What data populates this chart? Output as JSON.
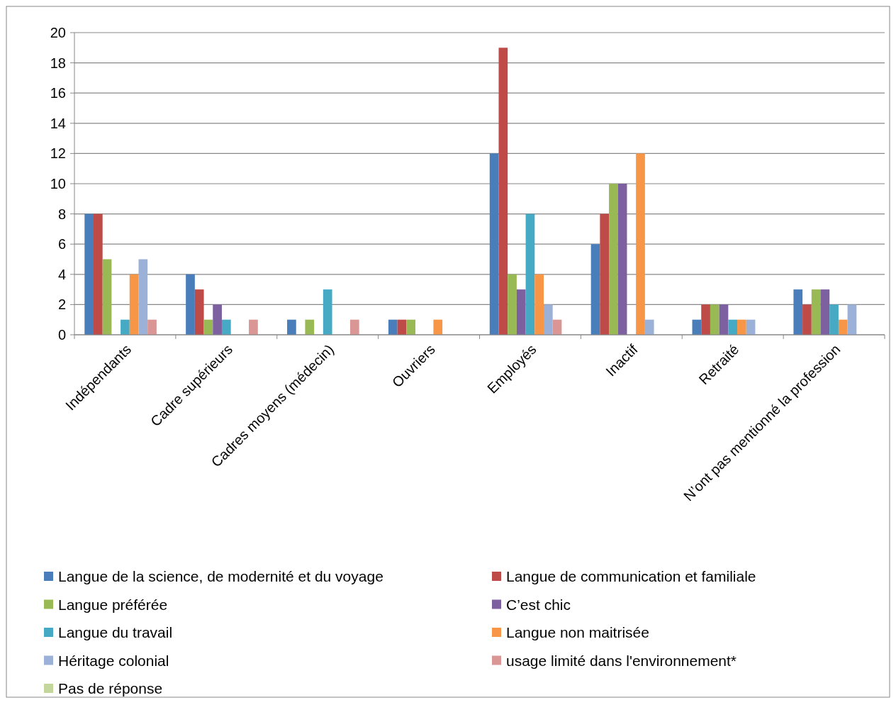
{
  "chart_data": {
    "type": "bar",
    "categories": [
      "Indépendants",
      "Cadre supérieurs",
      "Cadres moyens (médecin)",
      "Ouvriers",
      "Employés",
      "Inactif",
      "Retraité",
      "N’ont pas mentionné la profession"
    ],
    "series": [
      {
        "name": "Langue de la science, de modernité et du voyage",
        "color": "#4a7ebb",
        "values": [
          8,
          4,
          1,
          1,
          12,
          6,
          1,
          3
        ]
      },
      {
        "name": "Langue de communication et familiale",
        "color": "#be4b48",
        "values": [
          8,
          3,
          0,
          1,
          19,
          8,
          2,
          2
        ]
      },
      {
        "name": "Langue préférée",
        "color": "#98b954",
        "values": [
          5,
          1,
          1,
          1,
          4,
          10,
          2,
          3
        ]
      },
      {
        "name": "C’est chic",
        "color": "#7d60a0",
        "values": [
          0,
          2,
          0,
          0,
          3,
          10,
          2,
          3
        ]
      },
      {
        "name": "Langue du travail",
        "color": "#46aac5",
        "values": [
          1,
          1,
          3,
          0,
          8,
          0,
          1,
          2
        ]
      },
      {
        "name": "Langue non maitrisée",
        "color": "#f79646",
        "values": [
          4,
          0,
          0,
          1,
          4,
          12,
          1,
          1
        ]
      },
      {
        "name": "Héritage colonial",
        "color": "#9bb1d8",
        "values": [
          5,
          0,
          0,
          0,
          2,
          1,
          1,
          2
        ]
      },
      {
        "name": "usage limité dans l'environnement*",
        "color": "#d99694",
        "values": [
          1,
          1,
          1,
          0,
          1,
          0,
          0,
          0
        ]
      },
      {
        "name": "Pas de réponse",
        "color": "#c3d69b",
        "values": [
          0,
          0,
          0,
          0,
          0,
          0,
          0,
          0
        ]
      }
    ],
    "ylim": [
      0,
      20
    ],
    "yticks": [
      0,
      2,
      4,
      6,
      8,
      10,
      12,
      14,
      16,
      18,
      20
    ],
    "grid": "y",
    "legend": "bottom"
  }
}
